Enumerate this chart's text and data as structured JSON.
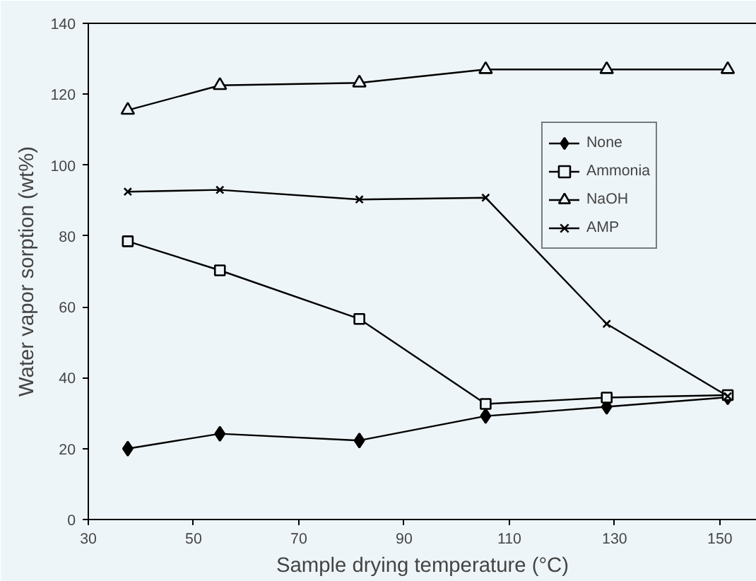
{
  "chart_data": {
    "type": "line",
    "xlabel": "Sample drying temperature (°C)",
    "ylabel": "Water vapor sorption (wt%)",
    "x": [
      37.5,
      55,
      81.5,
      105.5,
      128.5,
      151.5
    ],
    "series": [
      {
        "name": "None",
        "color": "#000000",
        "marker": "diamond",
        "values": [
          20,
          24.2,
          22.3,
          29.2,
          31.8,
          34.5
        ]
      },
      {
        "name": "Ammonia",
        "color": "#000000",
        "marker": "square",
        "values": [
          78.5,
          70.3,
          56.6,
          32.6,
          34.4,
          35.1
        ]
      },
      {
        "name": "NaOH",
        "color": "#000000",
        "marker": "triangle",
        "values": [
          115.5,
          122.5,
          123.2,
          127,
          127,
          127
        ]
      },
      {
        "name": "AMP",
        "color": "#000000",
        "marker": "cross",
        "values": [
          92.5,
          93,
          90.3,
          90.8,
          55.2,
          34.8
        ]
      }
    ],
    "xlim": [
      30,
      157
    ],
    "ylim": [
      0,
      140
    ],
    "xticks": [
      30,
      50,
      70,
      90,
      110,
      130,
      150
    ],
    "yticks": [
      0,
      20,
      40,
      60,
      80,
      100,
      120,
      140
    ],
    "grid": false,
    "legend": "top right",
    "line_style": "solid"
  }
}
